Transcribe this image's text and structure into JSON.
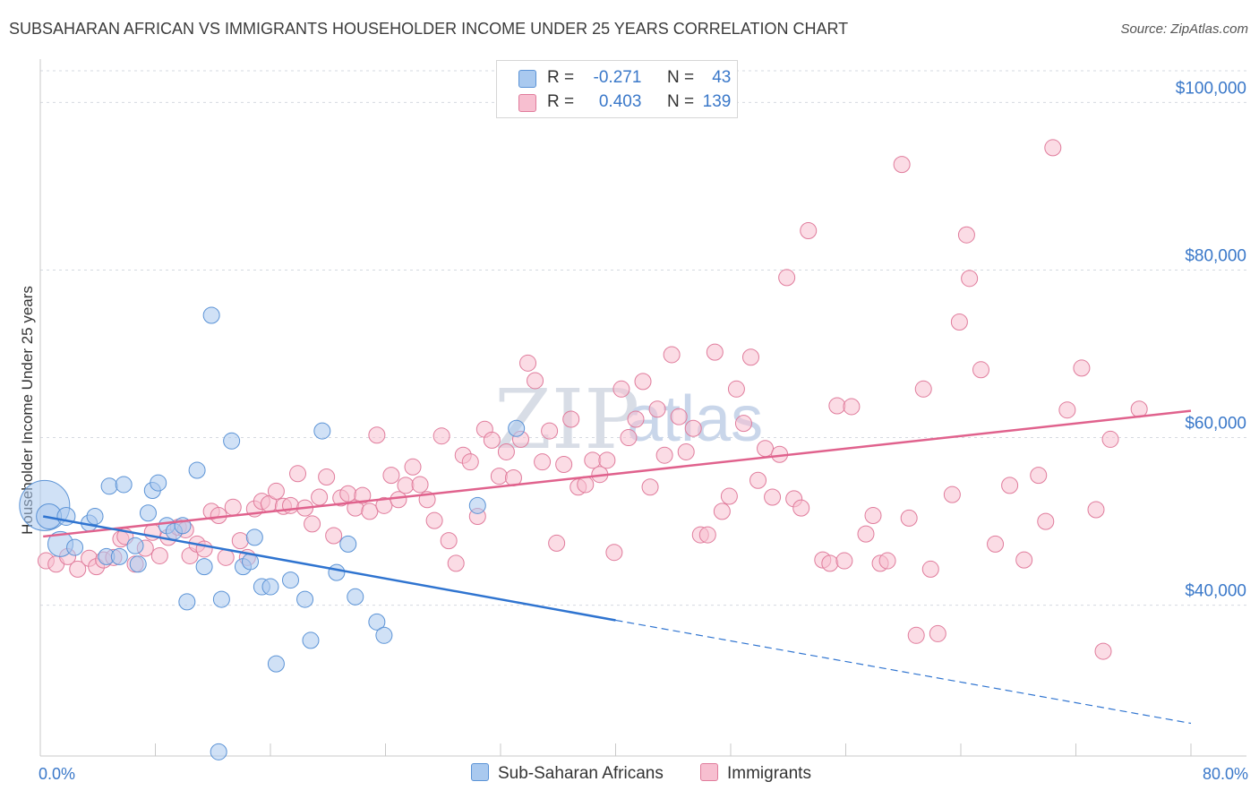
{
  "title": "SUBSAHARAN AFRICAN VS IMMIGRANTS HOUSEHOLDER INCOME UNDER 25 YEARS CORRELATION CHART",
  "source": "Source: ZipAtlas.com",
  "watermark": {
    "zip": "ZIP",
    "atlas": "atlas"
  },
  "legend": {
    "r_label": "R =",
    "n_label": "N =",
    "series1": {
      "r": "-0.271",
      "n": "43"
    },
    "series2": {
      "r": "0.403",
      "n": "139"
    }
  },
  "colors": {
    "blue_fill": "#a9c9ef",
    "blue_stroke": "#5b93d6",
    "blue_line": "#2f74d0",
    "pink_fill": "#f7bfd0",
    "pink_stroke": "#e07c9c",
    "pink_line": "#e0628d",
    "tick_text": "#3a78c9",
    "grid": "#d5d9e0"
  },
  "chart_data": {
    "type": "scatter",
    "title": "SUBSAHARAN AFRICAN VS IMMIGRANTS HOUSEHOLDER INCOME UNDER 25 YEARS CORRELATION CHART",
    "xlabel": "",
    "ylabel": "Householder Income Under 25 years",
    "xlim": [
      0,
      80
    ],
    "ylim": [
      22000,
      104000
    ],
    "x_tick_labels": [
      "0.0%",
      "80.0%"
    ],
    "y_ticks": [
      {
        "value": 40000,
        "label": "$40,000"
      },
      {
        "value": 60000,
        "label": "$60,000"
      },
      {
        "value": 80000,
        "label": "$80,000"
      },
      {
        "value": 100000,
        "label": "$100,000"
      }
    ],
    "grid": "horizontal dashed",
    "legend_position": "top-center",
    "series": [
      {
        "name": "Sub-Saharan Africans",
        "color": "#a9c9ef",
        "r": -0.271,
        "n": 43,
        "trend": {
          "x0": 0.2,
          "y0": 50600,
          "x1": 40,
          "y1": 38200,
          "dash_to_x": 80,
          "dash_to_y": 25900
        },
        "points": [
          [
            0.3,
            51900,
            28
          ],
          [
            0.6,
            50600,
            14
          ],
          [
            1.4,
            47300,
            14
          ],
          [
            1.8,
            50600,
            10
          ],
          [
            2.4,
            46900,
            9
          ],
          [
            3.4,
            49800,
            9
          ],
          [
            3.8,
            50600,
            9
          ],
          [
            4.6,
            45800,
            9
          ],
          [
            4.8,
            54200,
            9
          ],
          [
            5.5,
            45800,
            9
          ],
          [
            5.8,
            54400,
            9
          ],
          [
            6.6,
            47100,
            9
          ],
          [
            6.8,
            44900,
            9
          ],
          [
            7.5,
            51000,
            9
          ],
          [
            7.8,
            53700,
            9
          ],
          [
            8.2,
            54600,
            9
          ],
          [
            8.8,
            49500,
            9
          ],
          [
            9.3,
            48800,
            9
          ],
          [
            9.9,
            49500,
            9
          ],
          [
            10.2,
            40400,
            9
          ],
          [
            10.9,
            56100,
            9
          ],
          [
            11.4,
            44600,
            9
          ],
          [
            11.9,
            74600,
            9
          ],
          [
            12.6,
            40700,
            9
          ],
          [
            13.3,
            59600,
            9
          ],
          [
            14.1,
            44600,
            9
          ],
          [
            14.6,
            45200,
            9
          ],
          [
            14.9,
            48100,
            9
          ],
          [
            15.4,
            42200,
            9
          ],
          [
            16.0,
            42200,
            9
          ],
          [
            16.4,
            33000,
            9
          ],
          [
            17.4,
            43000,
            9
          ],
          [
            18.4,
            40700,
            9
          ],
          [
            18.8,
            35800,
            9
          ],
          [
            19.6,
            60800,
            9
          ],
          [
            20.6,
            43900,
            9
          ],
          [
            21.4,
            47300,
            9
          ],
          [
            21.9,
            41000,
            9
          ],
          [
            23.4,
            38000,
            9
          ],
          [
            23.9,
            36400,
            9
          ],
          [
            30.4,
            51900,
            9
          ],
          [
            33.1,
            61100,
            9
          ],
          [
            12.4,
            22500,
            9
          ]
        ]
      },
      {
        "name": "Immigrants",
        "color": "#f7bfd0",
        "r": 0.403,
        "n": 139,
        "trend": {
          "x0": 0.2,
          "y0": 48200,
          "x1": 80,
          "y1": 63200
        },
        "points": [
          [
            0.4,
            45300,
            9
          ],
          [
            1.1,
            44900,
            9
          ],
          [
            1.9,
            45800,
            9
          ],
          [
            2.6,
            44300,
            9
          ],
          [
            3.4,
            45600,
            9
          ],
          [
            3.9,
            44600,
            9
          ],
          [
            4.4,
            45400,
            9
          ],
          [
            5.1,
            45700,
            9
          ],
          [
            5.6,
            47900,
            9
          ],
          [
            5.9,
            48200,
            9
          ],
          [
            6.6,
            44900,
            9
          ],
          [
            7.3,
            46800,
            9
          ],
          [
            7.8,
            48700,
            9
          ],
          [
            8.3,
            45900,
            9
          ],
          [
            8.9,
            48100,
            9
          ],
          [
            9.6,
            49300,
            9
          ],
          [
            10.1,
            49000,
            9
          ],
          [
            10.4,
            45900,
            9
          ],
          [
            10.9,
            47300,
            9
          ],
          [
            11.4,
            46700,
            9
          ],
          [
            11.9,
            51200,
            9
          ],
          [
            12.4,
            50700,
            9
          ],
          [
            12.9,
            45700,
            9
          ],
          [
            13.4,
            51700,
            9
          ],
          [
            13.9,
            47700,
            9
          ],
          [
            14.4,
            45700,
            9
          ],
          [
            14.9,
            51500,
            9
          ],
          [
            15.4,
            52400,
            9
          ],
          [
            15.9,
            52100,
            9
          ],
          [
            16.4,
            53600,
            9
          ],
          [
            16.9,
            51800,
            9
          ],
          [
            17.4,
            51900,
            9
          ],
          [
            17.9,
            55700,
            9
          ],
          [
            18.4,
            51600,
            9
          ],
          [
            18.9,
            49700,
            9
          ],
          [
            19.4,
            52900,
            9
          ],
          [
            19.9,
            55300,
            9
          ],
          [
            20.4,
            48300,
            9
          ],
          [
            20.9,
            52800,
            9
          ],
          [
            21.4,
            53300,
            9
          ],
          [
            21.9,
            51600,
            9
          ],
          [
            22.4,
            53100,
            9
          ],
          [
            22.9,
            51200,
            9
          ],
          [
            23.4,
            60300,
            9
          ],
          [
            23.9,
            51900,
            9
          ],
          [
            24.4,
            55500,
            9
          ],
          [
            24.9,
            52600,
            9
          ],
          [
            25.4,
            54300,
            9
          ],
          [
            25.9,
            56500,
            9
          ],
          [
            26.4,
            54400,
            9
          ],
          [
            26.9,
            52600,
            9
          ],
          [
            27.4,
            50100,
            9
          ],
          [
            27.9,
            60200,
            9
          ],
          [
            28.4,
            47700,
            9
          ],
          [
            28.9,
            45000,
            9
          ],
          [
            29.4,
            57900,
            9
          ],
          [
            29.9,
            57100,
            9
          ],
          [
            30.4,
            50600,
            9
          ],
          [
            30.9,
            61000,
            9
          ],
          [
            31.4,
            59700,
            9
          ],
          [
            31.9,
            55400,
            9
          ],
          [
            32.4,
            58300,
            9
          ],
          [
            32.9,
            55200,
            9
          ],
          [
            33.4,
            59800,
            9
          ],
          [
            33.9,
            68900,
            9
          ],
          [
            34.4,
            66800,
            9
          ],
          [
            34.9,
            57100,
            9
          ],
          [
            35.4,
            60800,
            9
          ],
          [
            35.9,
            47400,
            9
          ],
          [
            36.4,
            56800,
            9
          ],
          [
            36.9,
            62200,
            9
          ],
          [
            37.4,
            54100,
            9
          ],
          [
            37.9,
            54400,
            9
          ],
          [
            38.4,
            57300,
            9
          ],
          [
            38.9,
            55600,
            9
          ],
          [
            39.4,
            57300,
            9
          ],
          [
            39.9,
            46300,
            9
          ],
          [
            40.4,
            65800,
            9
          ],
          [
            40.9,
            60000,
            9
          ],
          [
            41.4,
            62200,
            9
          ],
          [
            41.9,
            66700,
            9
          ],
          [
            42.4,
            54100,
            9
          ],
          [
            42.9,
            63400,
            9
          ],
          [
            43.4,
            57900,
            9
          ],
          [
            43.9,
            69900,
            9
          ],
          [
            44.4,
            62500,
            9
          ],
          [
            44.9,
            58300,
            9
          ],
          [
            45.4,
            61100,
            9
          ],
          [
            45.9,
            48400,
            9
          ],
          [
            46.4,
            48400,
            9
          ],
          [
            46.9,
            70200,
            9
          ],
          [
            47.4,
            51200,
            9
          ],
          [
            47.9,
            53000,
            9
          ],
          [
            48.4,
            65800,
            9
          ],
          [
            48.9,
            61700,
            9
          ],
          [
            49.4,
            69600,
            9
          ],
          [
            49.9,
            54900,
            9
          ],
          [
            50.4,
            58700,
            9
          ],
          [
            50.9,
            52900,
            9
          ],
          [
            51.4,
            58000,
            9
          ],
          [
            51.9,
            79100,
            9
          ],
          [
            52.4,
            52700,
            9
          ],
          [
            52.9,
            51600,
            9
          ],
          [
            53.4,
            84700,
            9
          ],
          [
            54.4,
            45400,
            9
          ],
          [
            54.9,
            45000,
            9
          ],
          [
            55.4,
            63800,
            9
          ],
          [
            55.9,
            45300,
            9
          ],
          [
            56.4,
            63700,
            9
          ],
          [
            57.4,
            48500,
            9
          ],
          [
            57.9,
            50700,
            9
          ],
          [
            58.4,
            45000,
            9
          ],
          [
            58.9,
            45300,
            9
          ],
          [
            59.9,
            92600,
            9
          ],
          [
            60.4,
            50400,
            9
          ],
          [
            60.9,
            36400,
            9
          ],
          [
            61.4,
            65800,
            9
          ],
          [
            61.9,
            44300,
            9
          ],
          [
            62.4,
            36600,
            9
          ],
          [
            63.4,
            53200,
            9
          ],
          [
            63.9,
            73800,
            9
          ],
          [
            64.4,
            84200,
            9
          ],
          [
            64.6,
            79000,
            9
          ],
          [
            65.4,
            68100,
            9
          ],
          [
            66.4,
            47300,
            9
          ],
          [
            67.4,
            54300,
            9
          ],
          [
            68.4,
            45400,
            9
          ],
          [
            69.4,
            55500,
            9
          ],
          [
            69.9,
            50000,
            9
          ],
          [
            70.4,
            94600,
            9
          ],
          [
            71.4,
            63300,
            9
          ],
          [
            72.4,
            68300,
            9
          ],
          [
            73.4,
            51400,
            9
          ],
          [
            73.9,
            34500,
            9
          ],
          [
            74.4,
            59800,
            9
          ],
          [
            76.4,
            63400,
            9
          ]
        ]
      }
    ]
  },
  "bottom_legend": {
    "series1": "Sub-Saharan Africans",
    "series2": "Immigrants"
  }
}
